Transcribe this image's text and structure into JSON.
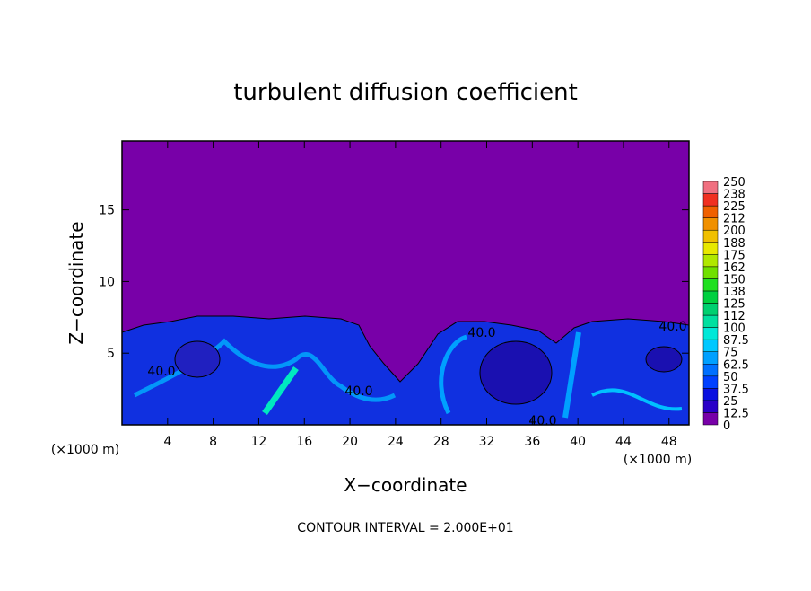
{
  "chart_data": {
    "type": "heatmap",
    "title": "turbulent diffusion coefficient",
    "x_label": "X−coordinate",
    "y_label": "Z−coordinate",
    "x_unit_label": "(×1000 m)",
    "footer": "CONTOUR INTERVAL = 2.000E+01",
    "xlim": [
      0,
      49.75
    ],
    "ylim": [
      0,
      19.8
    ],
    "xticks": [
      4,
      8,
      12,
      16,
      20,
      24,
      28,
      32,
      36,
      40,
      44,
      48
    ],
    "yticks": [
      5,
      10,
      15
    ],
    "background_color": "#7800a8",
    "contour_labels": [
      "40.0",
      "40.0",
      "40.0",
      "40.0",
      "40.0"
    ],
    "colorbar": {
      "levels": [
        0,
        12.5,
        25,
        37.5,
        50,
        62.5,
        75,
        87.5,
        100,
        {
          "value": 112.5,
          "label": "112"
        },
        125,
        {
          "value": 137.5,
          "label": "138"
        },
        150,
        {
          "value": 162.5,
          "label": "162"
        },
        175,
        {
          "value": 187.5,
          "label": "188"
        },
        200,
        {
          "value": 212.5,
          "label": "212"
        },
        225,
        {
          "value": 237.5,
          "label": "238"
        },
        250
      ],
      "colors": [
        "#7800a8",
        "#2a00c8",
        "#0a10e0",
        "#0040ff",
        "#0070ff",
        "#00a0ff",
        "#00c8ff",
        "#00e8d8",
        "#00e0a0",
        "#00d070",
        "#00d040",
        "#20e020",
        "#70e000",
        "#b0e800",
        "#e8e800",
        "#f0c000",
        "#f09000",
        "#f06000",
        "#f03020",
        "#f07080"
      ]
    }
  }
}
